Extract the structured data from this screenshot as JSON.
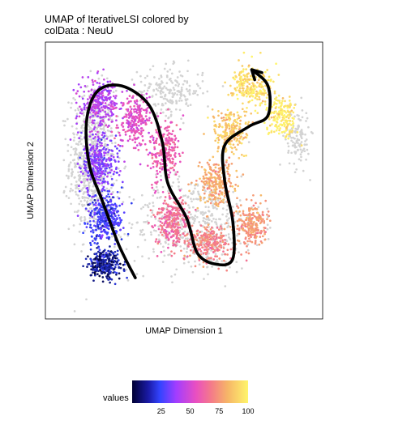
{
  "chart_data": {
    "type": "scatter",
    "title": "UMAP of IterativeLSI  colored by\ncolData :  NeuU",
    "xlabel": "UMAP Dimension 1",
    "ylabel": "UMAP Dimension 2",
    "legend": {
      "title": "values",
      "position": "bottom",
      "ticks": [
        25,
        50,
        75,
        100
      ],
      "range": [
        0,
        100
      ],
      "colormap": [
        "#000033",
        "#3344ff",
        "#a23dff",
        "#e94fc1",
        "#f47a8a",
        "#f6b468",
        "#fff56b"
      ]
    },
    "na_color": "#d3d3d3",
    "xlim": [
      0,
      10
    ],
    "ylim": [
      0,
      10
    ],
    "grid": false,
    "point_clouds": [
      {
        "x": 1.6,
        "y": 5.7,
        "sx": 0.75,
        "sy": 2.4,
        "value": null,
        "n": 700
      },
      {
        "x": 5.4,
        "y": 3.4,
        "sx": 2.2,
        "sy": 1.6,
        "value": null,
        "n": 500
      },
      {
        "x": 4.5,
        "y": 8.3,
        "sx": 1.1,
        "sy": 0.8,
        "value": null,
        "n": 200
      },
      {
        "x": 9.2,
        "y": 6.6,
        "sx": 0.4,
        "sy": 1.0,
        "value": null,
        "n": 120
      },
      {
        "x": 2.1,
        "y": 1.9,
        "sx": 0.5,
        "sy": 0.5,
        "value": 8,
        "n": 300
      },
      {
        "x": 2.1,
        "y": 3.6,
        "sx": 0.6,
        "sy": 0.8,
        "value": 20,
        "n": 340
      },
      {
        "x": 1.8,
        "y": 5.6,
        "sx": 0.6,
        "sy": 1.0,
        "value": 30,
        "n": 320
      },
      {
        "x": 1.9,
        "y": 7.8,
        "sx": 0.6,
        "sy": 0.8,
        "value": 38,
        "n": 260
      },
      {
        "x": 3.2,
        "y": 7.2,
        "sx": 0.5,
        "sy": 0.9,
        "value": 50,
        "n": 240
      },
      {
        "x": 4.3,
        "y": 6.0,
        "sx": 0.5,
        "sy": 1.0,
        "value": 55,
        "n": 240
      },
      {
        "x": 4.6,
        "y": 3.5,
        "sx": 0.6,
        "sy": 0.8,
        "value": 62,
        "n": 280
      },
      {
        "x": 5.9,
        "y": 2.7,
        "sx": 0.8,
        "sy": 0.6,
        "value": 70,
        "n": 260
      },
      {
        "x": 7.5,
        "y": 3.4,
        "sx": 0.5,
        "sy": 0.7,
        "value": 75,
        "n": 220
      },
      {
        "x": 6.2,
        "y": 4.9,
        "sx": 0.6,
        "sy": 0.8,
        "value": 80,
        "n": 240
      },
      {
        "x": 6.7,
        "y": 6.8,
        "sx": 0.6,
        "sy": 0.8,
        "value": 88,
        "n": 220
      },
      {
        "x": 7.5,
        "y": 8.5,
        "sx": 0.7,
        "sy": 0.7,
        "value": 95,
        "n": 240
      },
      {
        "x": 8.6,
        "y": 7.4,
        "sx": 0.5,
        "sy": 0.7,
        "value": 98,
        "n": 180
      }
    ],
    "trajectory": [
      [
        3.2,
        1.4
      ],
      [
        2.6,
        2.6
      ],
      [
        2.0,
        4.2
      ],
      [
        1.5,
        5.6
      ],
      [
        1.4,
        7.2
      ],
      [
        1.8,
        8.3
      ],
      [
        2.7,
        8.5
      ],
      [
        3.7,
        7.8
      ],
      [
        4.2,
        6.4
      ],
      [
        4.4,
        4.9
      ],
      [
        5.1,
        3.6
      ],
      [
        5.5,
        2.3
      ],
      [
        6.2,
        1.9
      ],
      [
        6.8,
        2.1
      ],
      [
        6.8,
        3.5
      ],
      [
        6.5,
        5.0
      ],
      [
        6.5,
        6.3
      ],
      [
        7.4,
        7.0
      ],
      [
        8.1,
        7.4
      ],
      [
        8.1,
        8.5
      ],
      [
        7.5,
        9.1
      ]
    ]
  }
}
